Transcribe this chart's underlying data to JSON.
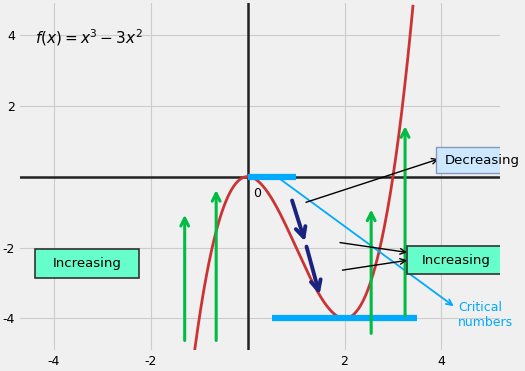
{
  "title": "f(x) = x^3 - 3x^2",
  "xlim": [
    -4.7,
    5.2
  ],
  "ylim": [
    -4.9,
    4.9
  ],
  "xticks": [
    -4,
    -2,
    0,
    2,
    4
  ],
  "yticks": [
    -4,
    -2,
    2,
    4
  ],
  "curve_color": "#cc3333",
  "grid_color": "#cccccc",
  "background_color": "#f0f0f0",
  "axes_color": "#222222",
  "green_box_color": "#66ffcc",
  "blue_box_color": "#cce8ff",
  "green_arrow_color": "#00bb44",
  "dark_blue_color": "#1a237e",
  "cyan_color": "#00aaff"
}
